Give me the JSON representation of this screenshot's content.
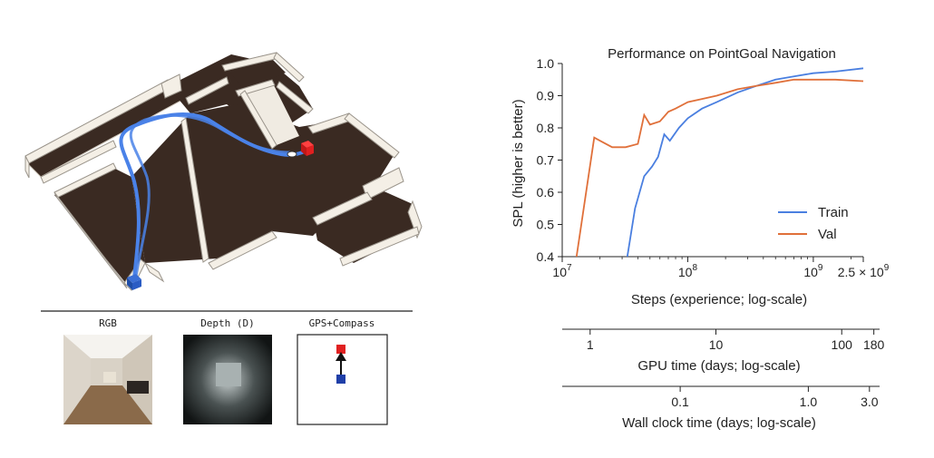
{
  "left": {
    "sensors": [
      {
        "label": "RGB"
      },
      {
        "label": "Depth (D)"
      },
      {
        "label": "GPS+Compass"
      }
    ],
    "colors": {
      "path": "#4a82e8",
      "start_marker": "#1f4ea8",
      "goal_marker": "#e02020",
      "floor": "#3a2a22",
      "wall": "#f4efe6"
    }
  },
  "chart_data": {
    "type": "line",
    "title": "Performance on PointGoal Navigation",
    "xlabel": "Steps (experience; log-scale)",
    "ylabel": "SPL (higher is better)",
    "xscale": "log",
    "xlim": [
      10000000,
      2500000000
    ],
    "ylim": [
      0.4,
      1.0
    ],
    "yticks": [
      "0.4",
      "0.5",
      "0.6",
      "0.7",
      "0.8",
      "0.9",
      "1.0"
    ],
    "xtick_labels": [
      {
        "value": 10000000,
        "base": "10",
        "exp": "7"
      },
      {
        "value": 100000000,
        "base": "10",
        "exp": "8"
      },
      {
        "value": 1000000000,
        "base": "10",
        "exp": "9"
      },
      {
        "value": 2500000000,
        "base": "2.5 × 10",
        "exp": "9"
      }
    ],
    "legend": {
      "placement": "lower-right"
    },
    "grid": false,
    "series": [
      {
        "name": "Train",
        "color": "#4a7fe0",
        "x": [
          33000000,
          38000000,
          45000000,
          52000000,
          58000000,
          65000000,
          72000000,
          85000000,
          100000000,
          130000000,
          170000000,
          250000000,
          350000000,
          500000000,
          700000000,
          1000000000,
          1500000000,
          2500000000
        ],
        "y": [
          0.4,
          0.55,
          0.65,
          0.68,
          0.71,
          0.78,
          0.76,
          0.8,
          0.83,
          0.86,
          0.88,
          0.91,
          0.93,
          0.95,
          0.96,
          0.97,
          0.975,
          0.985
        ]
      },
      {
        "name": "Val",
        "color": "#e0703a",
        "x": [
          13000000,
          18000000,
          20000000,
          25000000,
          32000000,
          40000000,
          45000000,
          50000000,
          60000000,
          70000000,
          80000000,
          100000000,
          130000000,
          170000000,
          250000000,
          350000000,
          500000000,
          700000000,
          1000000000,
          1500000000,
          2500000000
        ],
        "y": [
          0.4,
          0.77,
          0.76,
          0.74,
          0.74,
          0.75,
          0.84,
          0.81,
          0.82,
          0.85,
          0.86,
          0.88,
          0.89,
          0.9,
          0.92,
          0.93,
          0.94,
          0.95,
          0.95,
          0.95,
          0.945
        ]
      }
    ],
    "secondary_axes": [
      {
        "label": "GPU time (days; log-scale)",
        "ticks": [
          {
            "value": 1,
            "label": "1"
          },
          {
            "value": 10,
            "label": "10"
          },
          {
            "value": 100,
            "label": "100"
          },
          {
            "value": 180,
            "label": "180"
          }
        ],
        "lim": [
          0.6,
          200
        ]
      },
      {
        "label": "Wall clock time (days; log-scale)",
        "ticks": [
          {
            "value": 0.1,
            "label": "0.1"
          },
          {
            "value": 1.0,
            "label": "1.0"
          },
          {
            "value": 3.0,
            "label": "3.0"
          }
        ],
        "lim": [
          0.012,
          3.6
        ]
      }
    ]
  }
}
